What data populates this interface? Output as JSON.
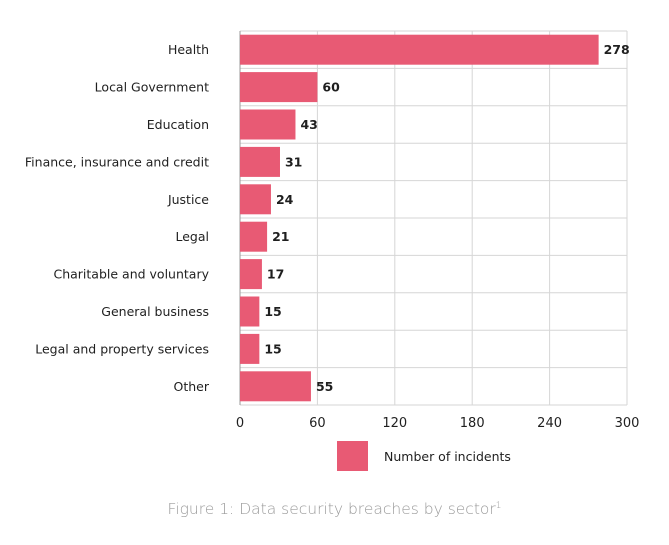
{
  "chart_data": {
    "type": "bar",
    "orientation": "horizontal",
    "categories": [
      "Health",
      "Local Government",
      "Education",
      "Finance, insurance and credit",
      "Justice",
      "Legal",
      "Charitable and voluntary",
      "General business",
      "Legal and property services",
      "Other"
    ],
    "series": [
      {
        "name": "Number of incidents",
        "values": [
          278,
          60,
          43,
          31,
          24,
          21,
          17,
          15,
          15,
          55
        ],
        "color": "#e85a74"
      }
    ],
    "x_ticks": [
      0,
      60,
      120,
      180,
      240,
      300
    ],
    "xlim": [
      0,
      300
    ],
    "grid": true,
    "legend_position": "bottom"
  },
  "caption": {
    "text": "Figure 1: Data security breaches by sector",
    "footnote_mark": "1"
  }
}
